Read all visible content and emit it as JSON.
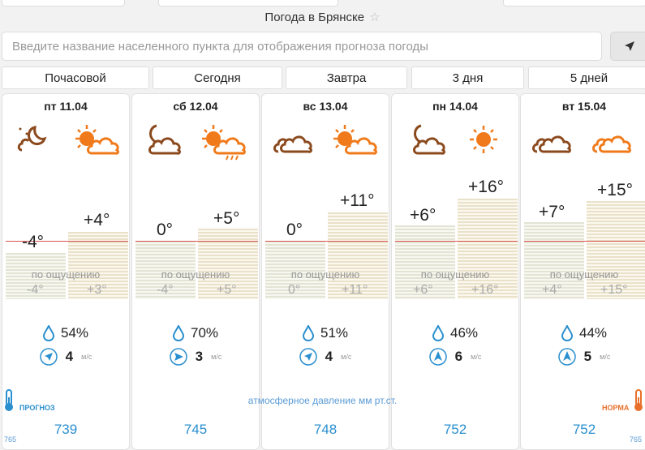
{
  "header": {
    "title": "Погода в Брянске"
  },
  "search": {
    "placeholder": "Введите название населенного пункта для отображения прогноза погоды"
  },
  "tabs": [
    {
      "label": "Почасовой"
    },
    {
      "label": "Сегодня"
    },
    {
      "label": "Завтра"
    },
    {
      "label": "3 дня"
    },
    {
      "label": "5 дней"
    }
  ],
  "days": [
    {
      "date": "пт 11.04",
      "night_temp": "-4°",
      "day_temp": "+4°",
      "feels_night": "-4°",
      "feels_day": "+3°",
      "humidity": "54%",
      "wind_speed": "4",
      "pressure": "739",
      "night_icon": "moon-cloud-icon",
      "day_icon": "sun-cloud-icon"
    },
    {
      "date": "сб 12.04",
      "night_temp": "0°",
      "day_temp": "+5°",
      "feels_night": "-4°",
      "feels_day": "+5°",
      "humidity": "70%",
      "wind_speed": "3",
      "pressure": "745",
      "night_icon": "moon-cloud-icon",
      "day_icon": "sun-cloud-rain-icon"
    },
    {
      "date": "вс 13.04",
      "night_temp": "0°",
      "day_temp": "+11°",
      "feels_night": "0°",
      "feels_day": "+11°",
      "humidity": "51%",
      "wind_speed": "4",
      "pressure": "748",
      "night_icon": "cloudy-icon",
      "day_icon": "sun-cloud-icon"
    },
    {
      "date": "пн 14.04",
      "night_temp": "+6°",
      "day_temp": "+16°",
      "feels_night": "+6°",
      "feels_day": "+16°",
      "humidity": "46%",
      "wind_speed": "6",
      "pressure": "752",
      "night_icon": "moon-cloud-icon",
      "day_icon": "sun-icon"
    },
    {
      "date": "вт 15.04",
      "night_temp": "+7°",
      "day_temp": "+15°",
      "feels_night": "+4°",
      "feels_day": "+15°",
      "humidity": "44%",
      "wind_speed": "5",
      "pressure": "752",
      "night_icon": "cloudy-icon",
      "day_icon": "cloudy-orange-icon"
    }
  ],
  "labels": {
    "feels_like": "по ощущению",
    "wind_unit": "м/с",
    "pressure_label": "атмосферное давление  мм рт.ст.",
    "forecast": "ПРОГНОЗ",
    "norm": "НОРМА",
    "scale_left": "765",
    "scale_right": "765"
  },
  "colors": {
    "accent_blue": "#2a8fcf",
    "night_icon": "#8b4a1e",
    "day_icon": "#f07a1a",
    "zero_line": "#d9534f"
  }
}
